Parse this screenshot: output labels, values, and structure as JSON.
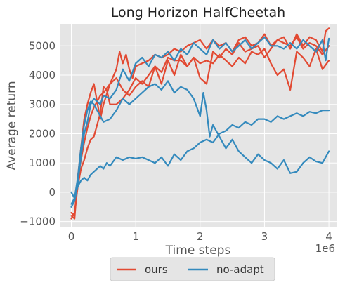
{
  "chart_data": {
    "type": "line",
    "title": "Long Horizon HalfCheetah",
    "xlabel": "Time steps",
    "ylabel": "Average return",
    "x_offset_label": "1e6",
    "xlim": [
      -0.18,
      4.13
    ],
    "ylim": [
      -1200,
      5750
    ],
    "x_ticks": [
      0,
      1,
      2,
      3,
      4
    ],
    "x_tick_labels": [
      "0",
      "1",
      "2",
      "3",
      "4"
    ],
    "y_ticks": [
      -1000,
      0,
      1000,
      2000,
      3000,
      4000,
      5000
    ],
    "y_tick_labels": [
      "−1000",
      "0",
      "1000",
      "2000",
      "3000",
      "4000",
      "5000"
    ],
    "grid": true,
    "legend_position": "bottom-outside",
    "colors": {
      "ours": "#e24a33",
      "no-adapt": "#348abd",
      "plot_bg": "#e5e5e5",
      "grid": "#ffffff"
    },
    "series": [
      {
        "name": "ours",
        "color": "#e24a33",
        "runs": [
          {
            "x": [
              0,
              0.05,
              0.1,
              0.15,
              0.2,
              0.25,
              0.3,
              0.35,
              0.4,
              0.45,
              0.5,
              0.6,
              0.7,
              0.75,
              0.8,
              0.85,
              0.9,
              0.95,
              1.0,
              1.1,
              1.2,
              1.3,
              1.4,
              1.5,
              1.6,
              1.7,
              1.8,
              1.9,
              2.0,
              2.1,
              2.2,
              2.3,
              2.4,
              2.5,
              2.6,
              2.7,
              2.8,
              2.9,
              3.0,
              3.1,
              3.2,
              3.3,
              3.4,
              3.5,
              3.6,
              3.7,
              3.8,
              3.9,
              3.95,
              4.0
            ],
            "y": [
              -800,
              -900,
              500,
              1500,
              2500,
              3000,
              3400,
              3700,
              3100,
              2500,
              3000,
              3700,
              4200,
              4800,
              4400,
              4700,
              4200,
              3900,
              4300,
              4400,
              4500,
              4700,
              4600,
              4700,
              4900,
              4800,
              5000,
              5100,
              5200,
              4900,
              5200,
              5000,
              5100,
              4800,
              5200,
              5300,
              5000,
              5100,
              5400,
              5000,
              5200,
              5300,
              4900,
              5400,
              5000,
              5300,
              5200,
              4800,
              5500,
              5600
            ]
          },
          {
            "x": [
              0,
              0.05,
              0.1,
              0.15,
              0.2,
              0.25,
              0.3,
              0.35,
              0.4,
              0.45,
              0.5,
              0.6,
              0.7,
              0.8,
              0.9,
              1.0,
              1.1,
              1.2,
              1.3,
              1.4,
              1.5,
              1.6,
              1.7,
              1.8,
              1.9,
              2.0,
              2.1,
              2.2,
              2.3,
              2.4,
              2.5,
              2.6,
              2.7,
              2.8,
              2.9,
              3.0,
              3.1,
              3.2,
              3.3,
              3.4,
              3.5,
              3.6,
              3.7,
              3.8,
              3.9,
              4.0
            ],
            "y": [
              -700,
              -800,
              400,
              1100,
              1700,
              2200,
              2600,
              2900,
              3100,
              3300,
              3400,
              3700,
              3900,
              3500,
              3300,
              3600,
              3800,
              3600,
              4300,
              3700,
              4500,
              4000,
              4700,
              4300,
              4600,
              4400,
              4500,
              4400,
              4700,
              4500,
              4300,
              4600,
              4400,
              4800,
              4700,
              4900,
              4400,
              4000,
              4200,
              3500,
              4800,
              4600,
              4300,
              4900,
              4200,
              4500
            ]
          },
          {
            "x": [
              0,
              0.05,
              0.1,
              0.15,
              0.2,
              0.25,
              0.3,
              0.35,
              0.4,
              0.45,
              0.5,
              0.55,
              0.6,
              0.7,
              0.8,
              0.9,
              1.0,
              1.1,
              1.2,
              1.3,
              1.4,
              1.5,
              1.6,
              1.7,
              1.8,
              1.9,
              2.0,
              2.1,
              2.2,
              2.3,
              2.4,
              2.5,
              2.6,
              2.7,
              2.8,
              2.9,
              3.0,
              3.1,
              3.2,
              3.3,
              3.4,
              3.5,
              3.6,
              3.7,
              3.8,
              3.9,
              4.0
            ],
            "y": [
              -900,
              -700,
              200,
              800,
              1100,
              1500,
              1800,
              1900,
              2300,
              2700,
              3600,
              3500,
              3000,
              3000,
              3200,
              3500,
              3900,
              3700,
              4000,
              4300,
              4100,
              4600,
              4500,
              4500,
              4300,
              4600,
              3900,
              3700,
              4800,
              4600,
              4900,
              4700,
              5100,
              4800,
              4900,
              5000,
              4600,
              4900,
              5200,
              5100,
              5000,
              5300,
              4900,
              5100,
              5000,
              4700,
              5000
            ]
          }
        ]
      },
      {
        "name": "no-adapt",
        "color": "#348abd",
        "runs": [
          {
            "x": [
              0,
              0.05,
              0.1,
              0.15,
              0.2,
              0.25,
              0.3,
              0.35,
              0.4,
              0.45,
              0.5,
              0.6,
              0.7,
              0.8,
              0.9,
              1.0,
              1.1,
              1.2,
              1.3,
              1.4,
              1.5,
              1.6,
              1.7,
              1.8,
              1.9,
              2.0,
              2.1,
              2.2,
              2.3,
              2.4,
              2.5,
              2.6,
              2.7,
              2.8,
              2.9,
              3.0,
              3.1,
              3.2,
              3.3,
              3.4,
              3.5,
              3.6,
              3.7,
              3.8,
              3.9,
              3.95,
              4.0
            ],
            "y": [
              -500,
              -300,
              300,
              1200,
              2000,
              2400,
              3000,
              3200,
              3100,
              3000,
              3300,
              3200,
              3500,
              4200,
              3800,
              4400,
              4600,
              4300,
              4700,
              4600,
              4800,
              4500,
              4900,
              4700,
              5100,
              4900,
              4700,
              5200,
              4900,
              5100,
              4800,
              5000,
              5200,
              4900,
              5100,
              5300,
              5000,
              5000,
              4900,
              5100,
              4900,
              5200,
              5000,
              4800,
              5200,
              4500,
              5250
            ]
          },
          {
            "x": [
              0,
              0.05,
              0.1,
              0.15,
              0.2,
              0.25,
              0.3,
              0.35,
              0.4,
              0.45,
              0.5,
              0.6,
              0.7,
              0.8,
              0.9,
              1.0,
              1.1,
              1.2,
              1.3,
              1.4,
              1.5,
              1.6,
              1.7,
              1.8,
              1.9,
              2.0,
              2.05,
              2.1,
              2.15,
              2.2,
              2.3,
              2.4,
              2.5,
              2.6,
              2.7,
              2.8,
              2.9,
              3.0,
              3.1,
              3.2,
              3.3,
              3.4,
              3.5,
              3.6,
              3.7,
              3.8,
              3.9,
              4.0
            ],
            "y": [
              -400,
              -200,
              500,
              1500,
              2300,
              2800,
              3100,
              3000,
              2800,
              2600,
              2400,
              2500,
              2800,
              3200,
              3000,
              3200,
              3400,
              3600,
              3700,
              3500,
              3800,
              3400,
              3600,
              3500,
              3200,
              2600,
              3400,
              2800,
              1900,
              2300,
              1900,
              1500,
              1800,
              1400,
              1200,
              1000,
              1300,
              1100,
              1000,
              800,
              1100,
              650,
              700,
              1000,
              1200,
              1050,
              1000,
              1400
            ]
          },
          {
            "x": [
              0,
              0.05,
              0.1,
              0.15,
              0.2,
              0.25,
              0.3,
              0.35,
              0.4,
              0.45,
              0.5,
              0.55,
              0.6,
              0.7,
              0.8,
              0.9,
              1.0,
              1.1,
              1.2,
              1.3,
              1.4,
              1.5,
              1.6,
              1.7,
              1.8,
              1.9,
              2.0,
              2.1,
              2.2,
              2.3,
              2.4,
              2.5,
              2.6,
              2.7,
              2.8,
              2.9,
              3.0,
              3.1,
              3.2,
              3.3,
              3.4,
              3.5,
              3.6,
              3.7,
              3.8,
              3.9,
              4.0
            ],
            "y": [
              0,
              -200,
              200,
              400,
              500,
              400,
              600,
              700,
              800,
              900,
              800,
              1000,
              900,
              1200,
              1100,
              1200,
              1150,
              1200,
              1100,
              1000,
              1200,
              900,
              1300,
              1100,
              1400,
              1500,
              1700,
              1800,
              1700,
              2000,
              2100,
              2300,
              2200,
              2400,
              2300,
              2500,
              2500,
              2400,
              2600,
              2500,
              2600,
              2700,
              2600,
              2750,
              2700,
              2800,
              2800
            ]
          }
        ]
      }
    ]
  }
}
